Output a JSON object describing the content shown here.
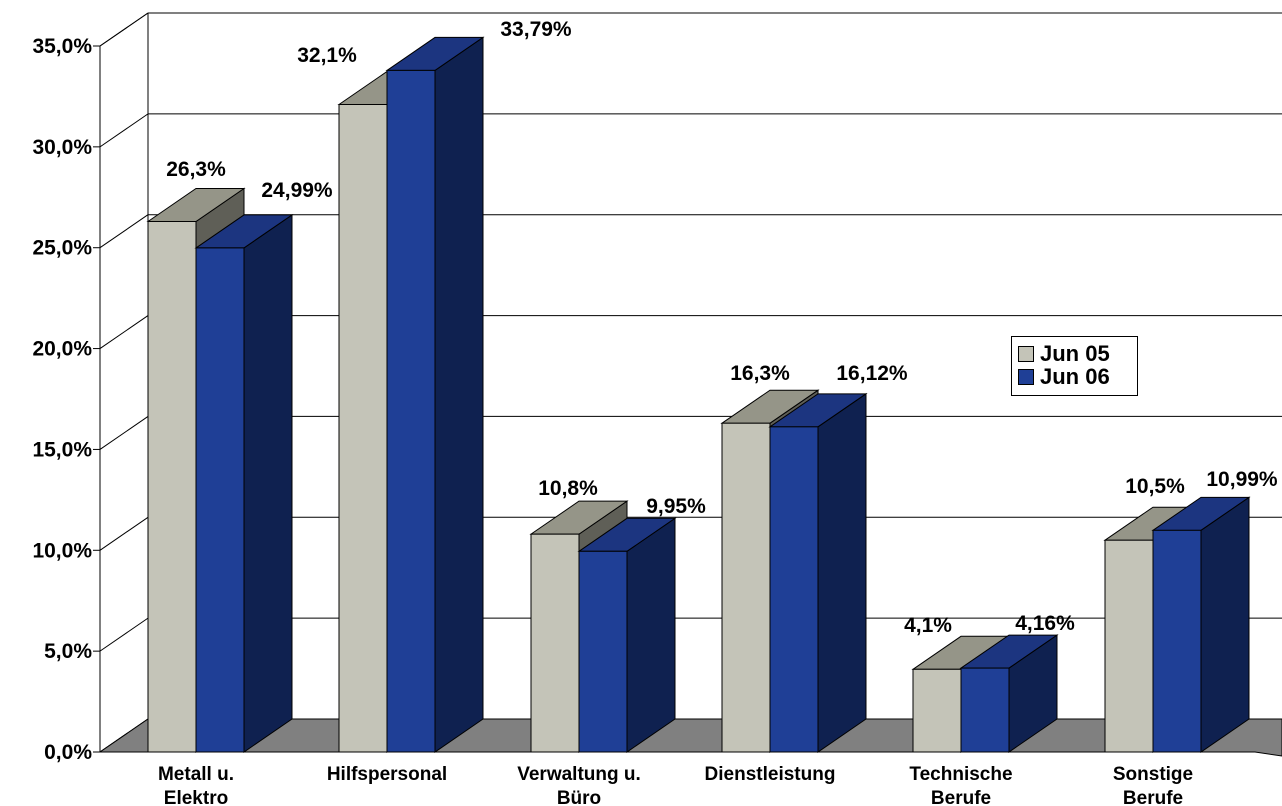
{
  "chart_data": {
    "type": "bar",
    "three_d": true,
    "categories": [
      [
        "Metall u.",
        "Elektro"
      ],
      [
        "Hilfspersonal"
      ],
      [
        "Verwaltung u.",
        "Büro"
      ],
      [
        "Dienstleistung"
      ],
      [
        "Technische",
        "Berufe"
      ],
      [
        "Sonstige",
        "Berufe"
      ]
    ],
    "series": [
      {
        "name": "Jun 05",
        "color": "#c4c4b8",
        "values": [
          26.3,
          32.1,
          10.8,
          16.3,
          4.1,
          10.5
        ],
        "labels": [
          "26,3%",
          "32,1%",
          "10,8%",
          "16,3%",
          "4,1%",
          "10,5%"
        ]
      },
      {
        "name": "Jun 06",
        "color": "#1f3f96",
        "values": [
          24.99,
          33.79,
          9.95,
          16.12,
          4.16,
          10.99
        ],
        "labels": [
          "24,99%",
          "33,79%",
          "9,95%",
          "16,12%",
          "4,16%",
          "10,99%"
        ]
      }
    ],
    "yticks": [
      "0,0%",
      "5,0%",
      "10,0%",
      "15,0%",
      "20,0%",
      "25,0%",
      "30,0%",
      "35,0%"
    ],
    "ylim": [
      0,
      35
    ],
    "grid": true,
    "legend": "right"
  }
}
